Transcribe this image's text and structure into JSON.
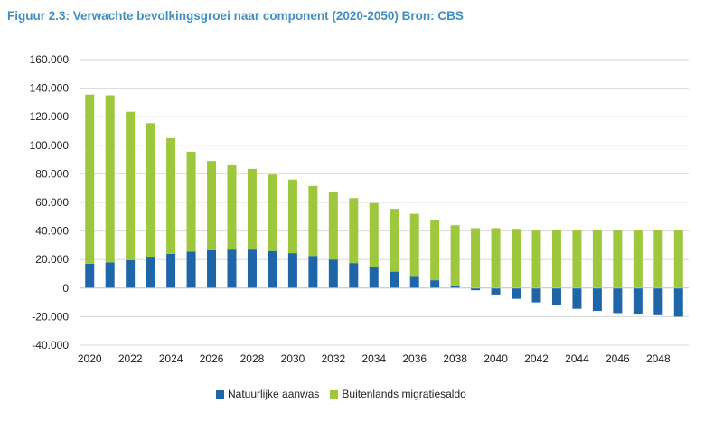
{
  "chart_data": {
    "type": "bar",
    "stacked": true,
    "title": "Figuur 2.3: Verwachte bevolkingsgroei naar component (2020-2050) Bron: CBS",
    "xlabel": "",
    "ylabel": "",
    "ylim": [
      -40000,
      160000
    ],
    "yticks": [
      160000,
      140000,
      120000,
      100000,
      80000,
      60000,
      40000,
      20000,
      0,
      -20000,
      -40000
    ],
    "ytick_labels": [
      "160.000",
      "140.000",
      "120.000",
      "100.000",
      "80.000",
      "60.000",
      "40.000",
      "20.000",
      "0",
      "-20.000",
      "-40.000"
    ],
    "categories": [
      "2020",
      "2021",
      "2022",
      "2023",
      "2024",
      "2025",
      "2026",
      "2027",
      "2028",
      "2029",
      "2030",
      "2031",
      "2032",
      "2033",
      "2034",
      "2035",
      "2036",
      "2037",
      "2038",
      "2039",
      "2040",
      "2041",
      "2042",
      "2043",
      "2044",
      "2045",
      "2046",
      "2047",
      "2048",
      "2049"
    ],
    "xtick_labels": [
      "2020",
      "",
      "2022",
      "",
      "2024",
      "",
      "2026",
      "",
      "2028",
      "",
      "2030",
      "",
      "2032",
      "",
      "2034",
      "",
      "2036",
      "",
      "2038",
      "",
      "2040",
      "",
      "2042",
      "",
      "2044",
      "",
      "2046",
      "",
      "2048",
      ""
    ],
    "grid": true,
    "legend": "bottom",
    "series": [
      {
        "name": "Natuurlijke aanwas",
        "color": "#1f66a9",
        "values": [
          17000,
          18000,
          19500,
          22000,
          24000,
          25500,
          26500,
          27000,
          27000,
          26000,
          24500,
          22500,
          20000,
          17500,
          14500,
          11500,
          8500,
          5500,
          1500,
          -1500,
          -4500,
          -7500,
          -10000,
          -12000,
          -14500,
          -16000,
          -17500,
          -18500,
          -19000,
          -20000
        ]
      },
      {
        "name": "Buitenlands migratiesaldo",
        "color": "#9dc83d",
        "values": [
          118500,
          117000,
          104000,
          93500,
          81000,
          70000,
          62500,
          59000,
          56500,
          53500,
          51500,
          49000,
          47500,
          45500,
          45000,
          44000,
          43500,
          42500,
          42500,
          42000,
          42000,
          41500,
          41000,
          41000,
          41000,
          40500,
          40500,
          40500,
          40500,
          40500
        ]
      }
    ]
  }
}
